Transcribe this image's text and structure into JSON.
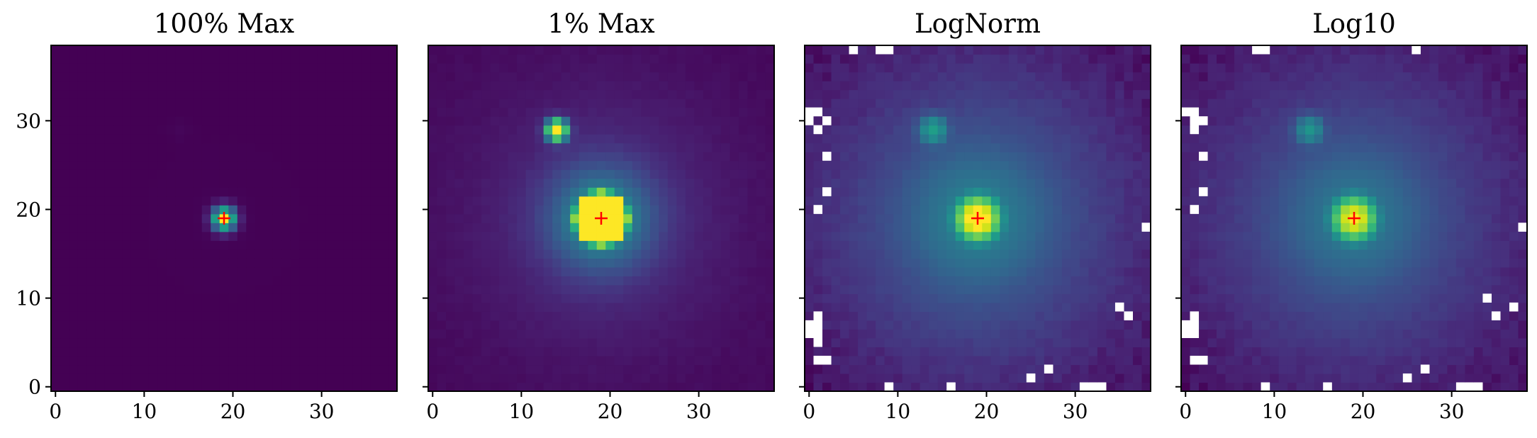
{
  "chart_data": [
    {
      "type": "heatmap",
      "title": "100% Max",
      "xlim": [
        -0.5,
        38.5
      ],
      "ylim": [
        -0.5,
        38.5
      ],
      "xticks": [
        0,
        10,
        20,
        30
      ],
      "yticks": [
        0,
        10,
        20,
        30
      ],
      "xtick_labels": [
        "0",
        "10",
        "20",
        "30"
      ],
      "ytick_labels": [
        "0",
        "10",
        "20",
        "30"
      ],
      "show_ytick_labels": true,
      "grid": false,
      "colormap": "viridis",
      "normalization": "linear, vmax = 100% of peak",
      "grid_size": [
        39,
        39
      ],
      "sources": [
        {
          "x": 19,
          "y": 19,
          "peak": 1.0,
          "sigma": 0.9
        },
        {
          "x": 14,
          "y": 29,
          "peak": 0.013,
          "sigma": 0.8
        }
      ],
      "marker": {
        "x": 19,
        "y": 19,
        "symbol": "+",
        "color": "#ff0000"
      },
      "masked_pixels": []
    },
    {
      "type": "heatmap",
      "title": "1% Max",
      "xlim": [
        -0.5,
        38.5
      ],
      "ylim": [
        -0.5,
        38.5
      ],
      "xticks": [
        0,
        10,
        20,
        30
      ],
      "yticks": [
        0,
        10,
        20,
        30
      ],
      "xtick_labels": [
        "0",
        "10",
        "20",
        "30"
      ],
      "ytick_labels": [],
      "show_ytick_labels": false,
      "grid": false,
      "colormap": "viridis",
      "normalization": "linear, vmax = 1% of peak",
      "grid_size": [
        39,
        39
      ],
      "sources": [
        {
          "x": 19,
          "y": 19,
          "peak": 1.0,
          "sigma": 0.9
        },
        {
          "x": 14,
          "y": 29,
          "peak": 0.013,
          "sigma": 0.8
        }
      ],
      "marker": {
        "x": 19,
        "y": 19,
        "symbol": "+",
        "color": "#ff0000"
      },
      "masked_pixels": []
    },
    {
      "type": "heatmap",
      "title": "LogNorm",
      "xlim": [
        -0.5,
        38.5
      ],
      "ylim": [
        -0.5,
        38.5
      ],
      "xticks": [
        0,
        10,
        20,
        30
      ],
      "yticks": [
        0,
        10,
        20,
        30
      ],
      "xtick_labels": [
        "0",
        "10",
        "20",
        "30"
      ],
      "ytick_labels": [],
      "show_ytick_labels": false,
      "grid": false,
      "colormap": "viridis",
      "normalization": "log",
      "grid_size": [
        39,
        39
      ],
      "sources": [
        {
          "x": 19,
          "y": 19,
          "peak": 1.0,
          "sigma": 0.9
        },
        {
          "x": 14,
          "y": 29,
          "peak": 0.013,
          "sigma": 0.8
        }
      ],
      "marker": {
        "x": 19,
        "y": 19,
        "symbol": "+",
        "color": "#ff0000"
      },
      "masked_pixels": [
        [
          5,
          38
        ],
        [
          8,
          38
        ],
        [
          9,
          38
        ],
        [
          0,
          31
        ],
        [
          1,
          31
        ],
        [
          0,
          30
        ],
        [
          2,
          30
        ],
        [
          1,
          29
        ],
        [
          2,
          26
        ],
        [
          2,
          22
        ],
        [
          1,
          20
        ],
        [
          1,
          8
        ],
        [
          0,
          7
        ],
        [
          1,
          7
        ],
        [
          0,
          6
        ],
        [
          1,
          6
        ],
        [
          1,
          5
        ],
        [
          1,
          3
        ],
        [
          2,
          3
        ],
        [
          9,
          0
        ],
        [
          16,
          0
        ],
        [
          25,
          1
        ],
        [
          27,
          2
        ],
        [
          31,
          0
        ],
        [
          32,
          0
        ],
        [
          33,
          0
        ],
        [
          35,
          9
        ],
        [
          36,
          8
        ],
        [
          38,
          18
        ]
      ]
    },
    {
      "type": "heatmap",
      "title": "Log10",
      "xlim": [
        -0.5,
        38.5
      ],
      "ylim": [
        -0.5,
        38.5
      ],
      "xticks": [
        0,
        10,
        20,
        30
      ],
      "yticks": [
        0,
        10,
        20,
        30
      ],
      "xtick_labels": [
        "0",
        "10",
        "20",
        "30"
      ],
      "ytick_labels": [],
      "show_ytick_labels": false,
      "grid": false,
      "colormap": "viridis",
      "normalization": "log10 of image",
      "grid_size": [
        39,
        39
      ],
      "sources": [
        {
          "x": 19,
          "y": 19,
          "peak": 1.0,
          "sigma": 0.9
        },
        {
          "x": 14,
          "y": 29,
          "peak": 0.013,
          "sigma": 0.8
        }
      ],
      "marker": {
        "x": 19,
        "y": 19,
        "symbol": "+",
        "color": "#ff0000"
      },
      "masked_pixels": [
        [
          8,
          38
        ],
        [
          9,
          38
        ],
        [
          26,
          38
        ],
        [
          0,
          31
        ],
        [
          1,
          31
        ],
        [
          1,
          30
        ],
        [
          2,
          30
        ],
        [
          1,
          29
        ],
        [
          2,
          26
        ],
        [
          2,
          22
        ],
        [
          1,
          20
        ],
        [
          1,
          8
        ],
        [
          0,
          7
        ],
        [
          1,
          7
        ],
        [
          0,
          6
        ],
        [
          1,
          6
        ],
        [
          1,
          3
        ],
        [
          2,
          3
        ],
        [
          9,
          0
        ],
        [
          16,
          0
        ],
        [
          25,
          1
        ],
        [
          27,
          2
        ],
        [
          31,
          0
        ],
        [
          32,
          0
        ],
        [
          33,
          0
        ],
        [
          34,
          10
        ],
        [
          35,
          8
        ],
        [
          37,
          9
        ],
        [
          38,
          18
        ]
      ]
    }
  ]
}
